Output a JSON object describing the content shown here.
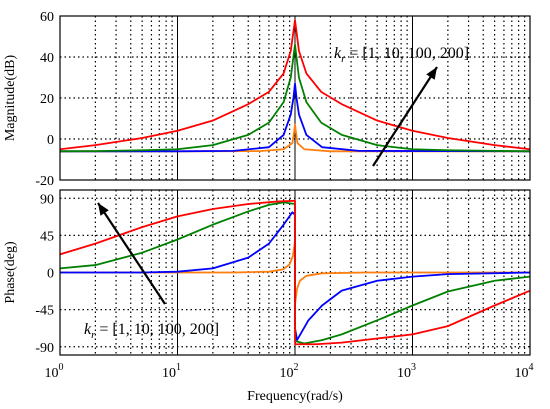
{
  "chart_data": [
    {
      "type": "line",
      "panel": "magnitude",
      "ylabel": "Magnitude(dB)",
      "xscale": "log",
      "xlim": [
        1,
        10000
      ],
      "ylim": [
        -20,
        60
      ],
      "yticks": [
        "60",
        "40",
        "20",
        "0",
        "-20"
      ],
      "grid": "dotted",
      "annotation": {
        "symbol": "k",
        "subscript": "r",
        "text": " = [1,  10,  100,  200]",
        "arrow": "up-right"
      },
      "series": [
        {
          "color": "#ff7f0e",
          "points": [
            [
              1,
              -6
            ],
            [
              10,
              -6
            ],
            [
              50,
              -5.9
            ],
            [
              80,
              -5
            ],
            [
              95,
              -2
            ],
            [
              98,
              3
            ],
            [
              100,
              7
            ],
            [
              102,
              3
            ],
            [
              105,
              -2
            ],
            [
              120,
              -5
            ],
            [
              200,
              -6
            ],
            [
              10000,
              -6
            ]
          ]
        },
        {
          "color": "#0000ff",
          "points": [
            [
              1,
              -6
            ],
            [
              10,
              -6
            ],
            [
              30,
              -5.8
            ],
            [
              60,
              -4
            ],
            [
              80,
              2
            ],
            [
              92,
              12
            ],
            [
              97,
              20
            ],
            [
              100,
              27
            ],
            [
              103,
              20
            ],
            [
              108,
              12
            ],
            [
              125,
              2
            ],
            [
              170,
              -4
            ],
            [
              350,
              -5.8
            ],
            [
              10000,
              -6
            ]
          ]
        },
        {
          "color": "#008000",
          "points": [
            [
              1,
              -6
            ],
            [
              2,
              -5.9
            ],
            [
              5,
              -5.5
            ],
            [
              10,
              -5
            ],
            [
              20,
              -3
            ],
            [
              40,
              2
            ],
            [
              60,
              8
            ],
            [
              80,
              18
            ],
            [
              92,
              30
            ],
            [
              100,
              46
            ],
            [
              108,
              30
            ],
            [
              125,
              18
            ],
            [
              167,
              8
            ],
            [
              250,
              2
            ],
            [
              500,
              -3
            ],
            [
              1000,
              -5
            ],
            [
              2000,
              -5.5
            ],
            [
              10000,
              -6
            ]
          ]
        },
        {
          "color": "#ff0000",
          "points": [
            [
              1,
              -5
            ],
            [
              2,
              -3
            ],
            [
              5,
              0.5
            ],
            [
              10,
              4
            ],
            [
              20,
              9
            ],
            [
              40,
              17
            ],
            [
              60,
              23
            ],
            [
              80,
              32
            ],
            [
              92,
              43
            ],
            [
              100,
              58
            ],
            [
              108,
              43
            ],
            [
              125,
              32
            ],
            [
              167,
              23
            ],
            [
              250,
              17
            ],
            [
              500,
              9
            ],
            [
              1000,
              4
            ],
            [
              2000,
              0.5
            ],
            [
              5000,
              -3
            ],
            [
              10000,
              -5
            ]
          ]
        }
      ]
    },
    {
      "type": "line",
      "panel": "phase",
      "xlabel": "Frequency(rad/s)",
      "ylabel": "Phase(deg)",
      "xscale": "log",
      "xlim": [
        1,
        10000
      ],
      "ylim": [
        -100,
        100
      ],
      "yticks": [
        "90",
        "45",
        "0",
        "-45",
        "-90"
      ],
      "xticks": [
        {
          "base": "10",
          "exp": "0"
        },
        {
          "base": "10",
          "exp": "1"
        },
        {
          "base": "10",
          "exp": "2"
        },
        {
          "base": "10",
          "exp": "3"
        },
        {
          "base": "10",
          "exp": "4"
        }
      ],
      "grid": "dotted",
      "annotation": {
        "symbol": "k",
        "subscript": "r",
        "text": " = [1,  10,  100,  200]",
        "arrow": "up-left"
      },
      "series": [
        {
          "color": "#ff7f0e",
          "points": [
            [
              1,
              0
            ],
            [
              30,
              0
            ],
            [
              60,
              1
            ],
            [
              80,
              4
            ],
            [
              90,
              10
            ],
            [
              96,
              20
            ],
            [
              100,
              38
            ],
            [
              100.2,
              -38
            ],
            [
              104,
              -20
            ],
            [
              110,
              -10
            ],
            [
              125,
              -4
            ],
            [
              170,
              -1
            ],
            [
              400,
              0
            ],
            [
              10000,
              0
            ]
          ]
        },
        {
          "color": "#0000ff",
          "points": [
            [
              1,
              0
            ],
            [
              5,
              0
            ],
            [
              10,
              1
            ],
            [
              20,
              5
            ],
            [
              40,
              18
            ],
            [
              60,
              35
            ],
            [
              80,
              58
            ],
            [
              95,
              73
            ],
            [
              100,
              70
            ],
            [
              100.2,
              -68
            ],
            [
              104,
              -82
            ],
            [
              110,
              -76
            ],
            [
              130,
              -58
            ],
            [
              170,
              -40
            ],
            [
              250,
              -22
            ],
            [
              500,
              -10
            ],
            [
              1000,
              -5
            ],
            [
              2000,
              -2
            ],
            [
              10000,
              0
            ]
          ]
        },
        {
          "color": "#008000",
          "points": [
            [
              1,
              5
            ],
            [
              2,
              9
            ],
            [
              5,
              24
            ],
            [
              10,
              40
            ],
            [
              20,
              58
            ],
            [
              40,
              74
            ],
            [
              60,
              82
            ],
            [
              80,
              85
            ],
            [
              100,
              83
            ],
            [
              100.2,
              -83
            ],
            [
              120,
              -86
            ],
            [
              170,
              -82
            ],
            [
              250,
              -75
            ],
            [
              500,
              -58
            ],
            [
              1000,
              -40
            ],
            [
              2000,
              -23
            ],
            [
              5000,
              -10
            ],
            [
              10000,
              -5
            ]
          ]
        },
        {
          "color": "#ff0000",
          "points": [
            [
              1,
              22
            ],
            [
              2,
              35
            ],
            [
              5,
              55
            ],
            [
              10,
              68
            ],
            [
              20,
              77
            ],
            [
              40,
              83
            ],
            [
              70,
              86
            ],
            [
              100,
              87
            ],
            [
              100.2,
              -87
            ],
            [
              150,
              -87
            ],
            [
              250,
              -85
            ],
            [
              500,
              -80
            ],
            [
              1000,
              -75
            ],
            [
              2000,
              -65
            ],
            [
              5000,
              -40
            ],
            [
              10000,
              -22
            ]
          ]
        }
      ]
    }
  ]
}
